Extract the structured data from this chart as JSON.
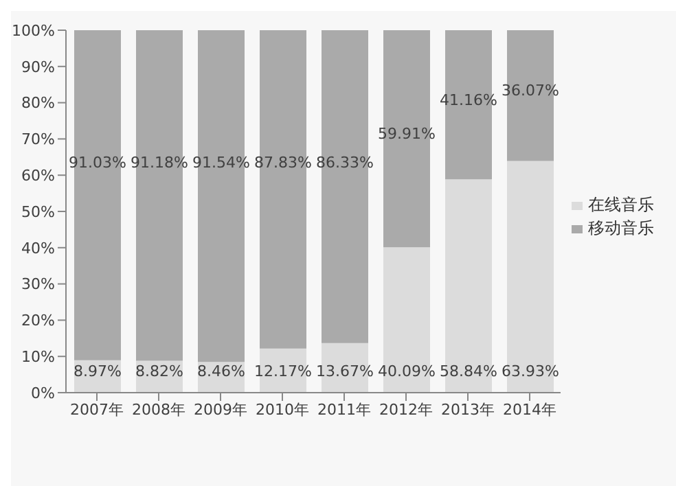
{
  "chart_data": {
    "type": "bar",
    "stacked": true,
    "categories": [
      "2007年",
      "2008年",
      "2009年",
      "2010年",
      "2011年",
      "2012年",
      "2013年",
      "2014年"
    ],
    "series": [
      {
        "name": "在线音乐",
        "color": "#dcdcdc",
        "values": [
          8.97,
          8.82,
          8.46,
          12.17,
          13.67,
          40.09,
          58.84,
          63.93
        ],
        "value_labels": [
          "8.97%",
          "8.82%",
          "8.46%",
          "12.17%",
          "13.67%",
          "40.09%",
          "58.84%",
          "63.93%"
        ]
      },
      {
        "name": "移动音乐",
        "color": "#aaaaaa",
        "values": [
          91.03,
          91.18,
          91.54,
          87.83,
          86.33,
          59.91,
          41.16,
          36.07
        ],
        "value_labels": [
          "91.03%",
          "91.18%",
          "91.54%",
          "87.83%",
          "86.33%",
          "59.91%",
          "41.16%",
          "36.07%"
        ]
      }
    ],
    "ylim": [
      0,
      100
    ],
    "yticks": [
      {
        "value": 0,
        "label": "0%"
      },
      {
        "value": 10,
        "label": "10%"
      },
      {
        "value": 20,
        "label": "20%"
      },
      {
        "value": 30,
        "label": "30%"
      },
      {
        "value": 40,
        "label": "40%"
      },
      {
        "value": 50,
        "label": "50%"
      },
      {
        "value": 60,
        "label": "60%"
      },
      {
        "value": 70,
        "label": "70%"
      },
      {
        "value": 80,
        "label": "80%"
      },
      {
        "value": 90,
        "label": "90%"
      },
      {
        "value": 100,
        "label": "100%"
      }
    ],
    "grid": false,
    "legend": "right"
  }
}
